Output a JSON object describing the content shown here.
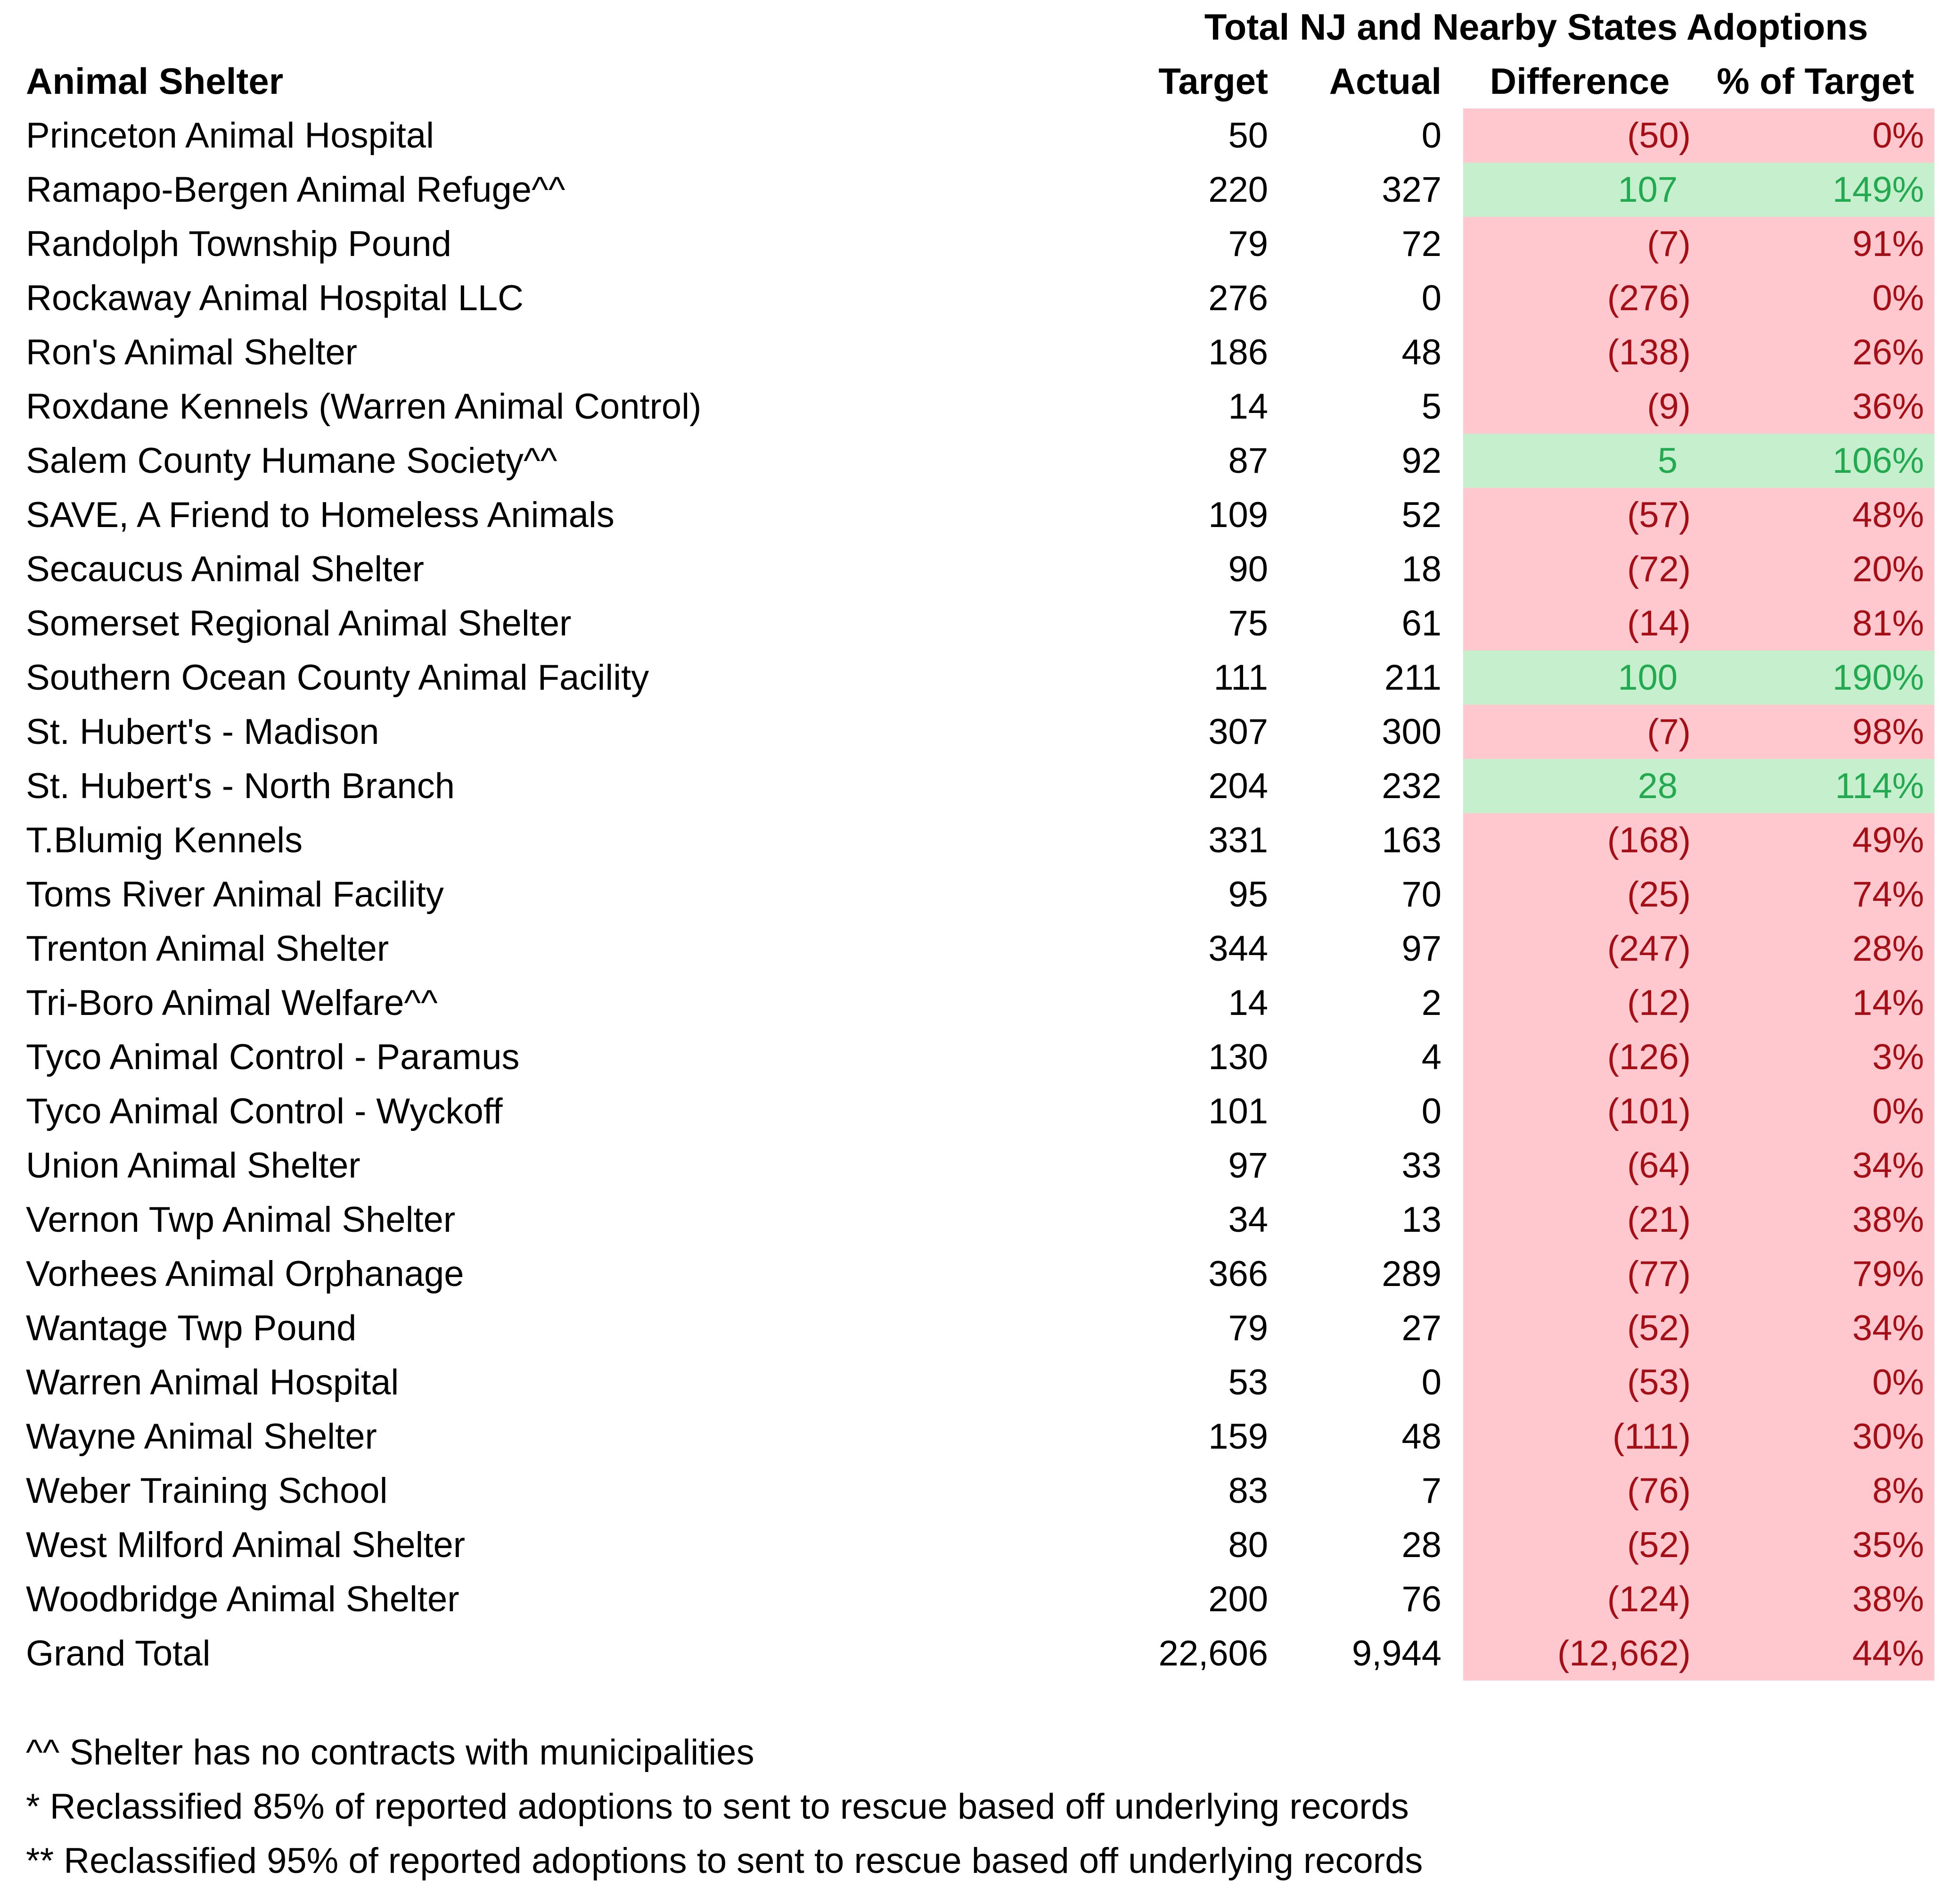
{
  "title": "Total NJ and Nearby States Adoptions",
  "columns": {
    "shelter": "Animal Shelter",
    "target": "Target",
    "actual": "Actual",
    "difference": "Difference",
    "pct_of_target": "% of Target"
  },
  "colors": {
    "under_fill": "#FFC7CE",
    "under_text": "#A50E15",
    "over_fill": "#C6EFCE",
    "over_text": "#23AA50"
  },
  "table": {
    "rows": [
      {
        "name": "Princeton Animal Hospital",
        "target": "50",
        "actual": "0",
        "difference": "(50)",
        "pct": "0%",
        "status": "under"
      },
      {
        "name": "Ramapo-Bergen Animal Refuge^^",
        "target": "220",
        "actual": "327",
        "difference": "107",
        "pct": "149%",
        "status": "over"
      },
      {
        "name": "Randolph Township Pound",
        "target": "79",
        "actual": "72",
        "difference": "(7)",
        "pct": "91%",
        "status": "under"
      },
      {
        "name": "Rockaway Animal Hospital LLC",
        "target": "276",
        "actual": "0",
        "difference": "(276)",
        "pct": "0%",
        "status": "under"
      },
      {
        "name": "Ron's Animal Shelter",
        "target": "186",
        "actual": "48",
        "difference": "(138)",
        "pct": "26%",
        "status": "under"
      },
      {
        "name": "Roxdane Kennels (Warren Animal Control)",
        "target": "14",
        "actual": "5",
        "difference": "(9)",
        "pct": "36%",
        "status": "under"
      },
      {
        "name": "Salem County Humane Society^^",
        "target": "87",
        "actual": "92",
        "difference": "5",
        "pct": "106%",
        "status": "over"
      },
      {
        "name": "SAVE, A Friend to Homeless Animals",
        "target": "109",
        "actual": "52",
        "difference": "(57)",
        "pct": "48%",
        "status": "under"
      },
      {
        "name": "Secaucus Animal Shelter",
        "target": "90",
        "actual": "18",
        "difference": "(72)",
        "pct": "20%",
        "status": "under"
      },
      {
        "name": "Somerset Regional Animal Shelter",
        "target": "75",
        "actual": "61",
        "difference": "(14)",
        "pct": "81%",
        "status": "under"
      },
      {
        "name": "Southern Ocean County Animal Facility",
        "target": "111",
        "actual": "211",
        "difference": "100",
        "pct": "190%",
        "status": "over"
      },
      {
        "name": "St. Hubert's - Madison",
        "target": "307",
        "actual": "300",
        "difference": "(7)",
        "pct": "98%",
        "status": "under"
      },
      {
        "name": "St. Hubert's - North Branch",
        "target": "204",
        "actual": "232",
        "difference": "28",
        "pct": "114%",
        "status": "over"
      },
      {
        "name": "T.Blumig Kennels",
        "target": "331",
        "actual": "163",
        "difference": "(168)",
        "pct": "49%",
        "status": "under"
      },
      {
        "name": "Toms River Animal Facility",
        "target": "95",
        "actual": "70",
        "difference": "(25)",
        "pct": "74%",
        "status": "under"
      },
      {
        "name": "Trenton Animal Shelter",
        "target": "344",
        "actual": "97",
        "difference": "(247)",
        "pct": "28%",
        "status": "under"
      },
      {
        "name": "Tri-Boro Animal Welfare^^",
        "target": "14",
        "actual": "2",
        "difference": "(12)",
        "pct": "14%",
        "status": "under"
      },
      {
        "name": "Tyco Animal Control - Paramus",
        "target": "130",
        "actual": "4",
        "difference": "(126)",
        "pct": "3%",
        "status": "under"
      },
      {
        "name": "Tyco Animal Control - Wyckoff",
        "target": "101",
        "actual": "0",
        "difference": "(101)",
        "pct": "0%",
        "status": "under"
      },
      {
        "name": "Union Animal Shelter",
        "target": "97",
        "actual": "33",
        "difference": "(64)",
        "pct": "34%",
        "status": "under"
      },
      {
        "name": "Vernon Twp Animal Shelter",
        "target": "34",
        "actual": "13",
        "difference": "(21)",
        "pct": "38%",
        "status": "under"
      },
      {
        "name": "Vorhees Animal Orphanage",
        "target": "366",
        "actual": "289",
        "difference": "(77)",
        "pct": "79%",
        "status": "under"
      },
      {
        "name": "Wantage Twp Pound",
        "target": "79",
        "actual": "27",
        "difference": "(52)",
        "pct": "34%",
        "status": "under"
      },
      {
        "name": "Warren Animal Hospital",
        "target": "53",
        "actual": "0",
        "difference": "(53)",
        "pct": "0%",
        "status": "under"
      },
      {
        "name": "Wayne Animal Shelter",
        "target": "159",
        "actual": "48",
        "difference": "(111)",
        "pct": "30%",
        "status": "under"
      },
      {
        "name": "Weber Training School",
        "target": "83",
        "actual": "7",
        "difference": "(76)",
        "pct": "8%",
        "status": "under"
      },
      {
        "name": "West Milford Animal Shelter",
        "target": "80",
        "actual": "28",
        "difference": "(52)",
        "pct": "35%",
        "status": "under"
      },
      {
        "name": "Woodbridge Animal Shelter",
        "target": "200",
        "actual": "76",
        "difference": "(124)",
        "pct": "38%",
        "status": "under"
      },
      {
        "name": "Grand Total",
        "target": "22,606",
        "actual": "9,944",
        "difference": "(12,662)",
        "pct": "44%",
        "status": "under"
      }
    ]
  },
  "footnotes": [
    "^^ Shelter has no contracts with municipalities",
    "* Reclassified 85% of reported adoptions to sent to rescue based off underlying records",
    "** Reclassified 95% of reported adoptions to sent to rescue based off underlying records"
  ]
}
